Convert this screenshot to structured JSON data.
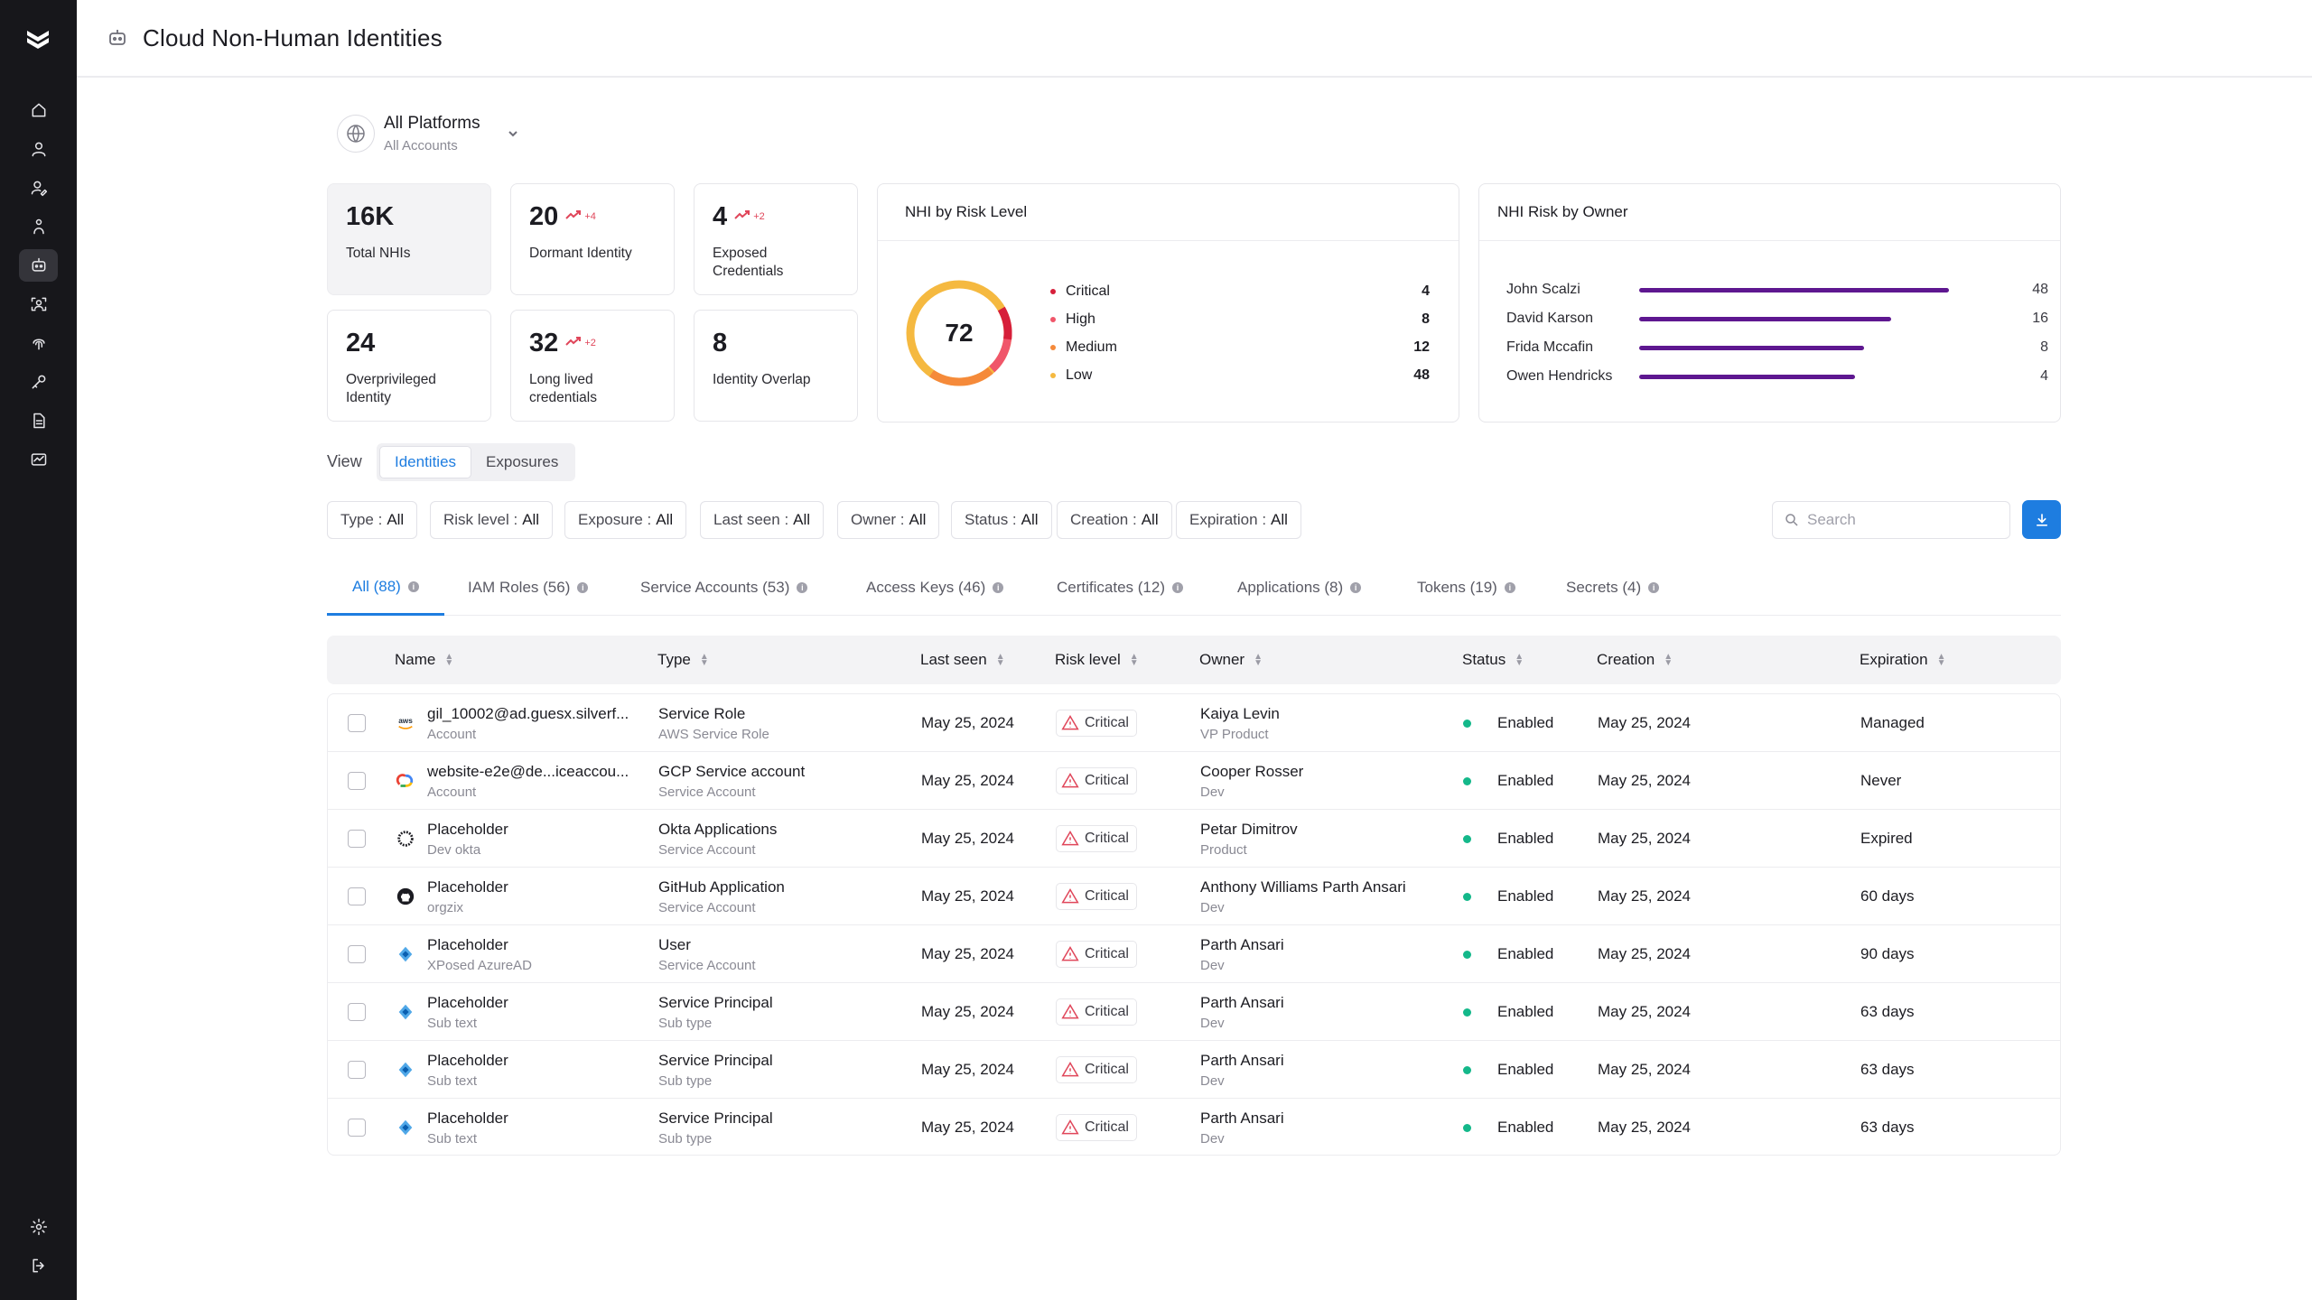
{
  "header": {
    "title": "Cloud Non-Human Identities"
  },
  "sidebar": {
    "items": [
      {
        "icon": "home-icon"
      },
      {
        "icon": "user-icon"
      },
      {
        "icon": "user-edit-icon"
      },
      {
        "icon": "person-icon"
      },
      {
        "icon": "robot-icon",
        "active": true
      },
      {
        "icon": "user-scan-icon"
      },
      {
        "icon": "fingerprint-icon"
      },
      {
        "icon": "key-icon"
      },
      {
        "icon": "document-icon"
      },
      {
        "icon": "chart-icon"
      }
    ],
    "bottom": [
      {
        "icon": "settings-icon"
      },
      {
        "icon": "logout-icon"
      }
    ]
  },
  "platform": {
    "name": "All Platforms",
    "sub": "All Accounts"
  },
  "stats": [
    {
      "value": "16K",
      "label": "Total NHIs"
    },
    {
      "value": "20",
      "trend": "+4",
      "label": "Dormant Identity"
    },
    {
      "value": "4",
      "trend": "+2",
      "label": "Exposed Credentials"
    },
    {
      "value": "24",
      "label": "Overprivileged Identity"
    },
    {
      "value": "32",
      "trend": "+2",
      "label": "Long lived credentials"
    },
    {
      "value": "8",
      "label": "Identity Overlap"
    }
  ],
  "risk_card": {
    "title": "NHI by Risk Level",
    "score": "72",
    "levels": [
      {
        "name": "Critical",
        "value": "4",
        "color": "#d61f3a"
      },
      {
        "name": "High",
        "value": "8",
        "color": "#f0566a"
      },
      {
        "name": "Medium",
        "value": "12",
        "color": "#f58a3a"
      },
      {
        "name": "Low",
        "value": "48",
        "color": "#f5b940"
      }
    ]
  },
  "owner_card": {
    "title": "NHI Risk by Owner",
    "owners": [
      {
        "name": "John Scalzi",
        "value": "48"
      },
      {
        "name": "David Karson",
        "value": "16"
      },
      {
        "name": "Frida Mccafin",
        "value": "8"
      },
      {
        "name": "Owen Hendricks",
        "value": "4"
      }
    ]
  },
  "view": {
    "label": "View",
    "options": [
      "Identities",
      "Exposures"
    ]
  },
  "filters": [
    {
      "label": "Type :",
      "value": "All"
    },
    {
      "label": "Risk level :",
      "value": "All"
    },
    {
      "label": "Exposure :",
      "value": "All"
    },
    {
      "label": "Last seen :",
      "value": "All"
    },
    {
      "label": "Owner :",
      "value": "All"
    },
    {
      "label": "Status :",
      "value": "All"
    },
    {
      "label": "Creation :",
      "value": "All"
    },
    {
      "label": "Expiration :",
      "value": "All"
    }
  ],
  "search": {
    "placeholder": "Search"
  },
  "tabs": [
    "All (88)",
    "IAM Roles (56)",
    "Service Accounts (53)",
    "Access Keys (46)",
    "Certificates (12)",
    "Applications (8)",
    "Tokens (19)",
    "Secrets (4)"
  ],
  "columns": [
    "Name",
    "Type",
    "Last seen",
    "Risk level",
    "Owner",
    "Status",
    "Creation",
    "Expiration"
  ],
  "rows": [
    {
      "icon": "aws-icon",
      "name": "gil_10002@ad.guesx.silverf...",
      "name_sub": "Account",
      "type": "Service Role",
      "type_sub": "AWS Service Role",
      "last_seen": "May 25, 2024",
      "risk": "Critical",
      "owner": "Kaiya Levin",
      "owner_sub": "VP Product",
      "status": "Enabled",
      "creation": "May 25, 2024",
      "expiration": "Managed"
    },
    {
      "icon": "gcp-icon",
      "name": "website-e2e@de...iceaccou...",
      "name_sub": "Account",
      "type": "GCP Service account",
      "type_sub": "Service Account",
      "last_seen": "May 25, 2024",
      "risk": "Critical",
      "owner": "Cooper Rosser",
      "owner_sub": "Dev",
      "status": "Enabled",
      "creation": "May 25, 2024",
      "expiration": "Never"
    },
    {
      "icon": "okta-icon",
      "name": "Placeholder",
      "name_sub": "Dev okta",
      "type": "Okta Applications",
      "type_sub": "Service Account",
      "last_seen": "May 25, 2024",
      "risk": "Critical",
      "owner": "Petar Dimitrov",
      "owner_sub": "Product",
      "status": "Enabled",
      "creation": "May 25, 2024",
      "expiration": "Expired"
    },
    {
      "icon": "github-icon",
      "name": "Placeholder",
      "name_sub": "orgzix",
      "type": "GitHub Application",
      "type_sub": "Service Account",
      "last_seen": "May 25, 2024",
      "risk": "Critical",
      "owner": "Anthony Williams Parth Ansari",
      "owner_sub": "Dev",
      "status": "Enabled",
      "creation": "May 25, 2024",
      "expiration": "60 days"
    },
    {
      "icon": "azure-icon",
      "name": "Placeholder",
      "name_sub": " XPosed AzureAD",
      "type": "User",
      "type_sub": "Service Account",
      "last_seen": "May 25, 2024",
      "risk": "Critical",
      "owner": "Parth Ansari",
      "owner_sub": "Dev",
      "status": "Enabled",
      "creation": "May 25, 2024",
      "expiration": "90 days"
    },
    {
      "icon": "azure-icon",
      "name": "Placeholder",
      "name_sub": "Sub text",
      "type": "Service Principal",
      "type_sub": "Sub type",
      "last_seen": "May 25, 2024",
      "risk": "Critical",
      "owner": "Parth Ansari",
      "owner_sub": "Dev",
      "status": "Enabled",
      "creation": "May 25, 2024",
      "expiration": "63 days"
    },
    {
      "icon": "azure-icon",
      "name": "Placeholder",
      "name_sub": "Sub text",
      "type": "Service Principal",
      "type_sub": "Sub type",
      "last_seen": "May 25, 2024",
      "risk": "Critical",
      "owner": "Parth Ansari",
      "owner_sub": "Dev",
      "status": "Enabled",
      "creation": "May 25, 2024",
      "expiration": "63 days"
    },
    {
      "icon": "azure-icon",
      "name": "Placeholder",
      "name_sub": "Sub text",
      "type": "Service Principal",
      "type_sub": "Sub type",
      "last_seen": "May 25, 2024",
      "risk": "Critical",
      "owner": "Parth Ansari",
      "owner_sub": "Dev",
      "status": "Enabled",
      "creation": "May 25, 2024",
      "expiration": "63 days"
    }
  ]
}
